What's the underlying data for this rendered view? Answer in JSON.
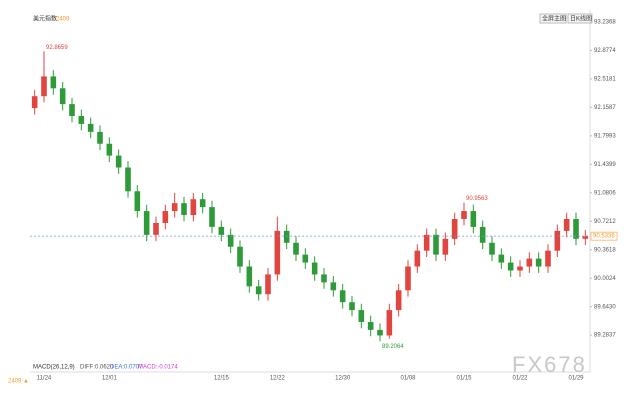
{
  "header": {
    "title": "美元指数",
    "code": "2409",
    "menu_left": "全屏主图▼",
    "menu_right": "日K线图"
  },
  "indicator": {
    "name": "MACD(26,12,9)",
    "diff": "DIFF:0.0620",
    "dea": "DEA:0.0707",
    "macd": "MACD:-0.0174"
  },
  "footer": {
    "code": "2409 ▲",
    "watermark": "FX678"
  },
  "chart_data": {
    "type": "candlestick",
    "up_color": "#e0453f",
    "down_color": "#2f9a3a",
    "categories": [
      null,
      "11/24",
      null,
      null,
      null,
      null,
      null,
      null,
      "12/01",
      null,
      null,
      null,
      null,
      null,
      null,
      null,
      null,
      null,
      null,
      null,
      "12/15",
      null,
      null,
      null,
      null,
      null,
      "12/22",
      null,
      null,
      null,
      null,
      null,
      null,
      "12/30",
      null,
      null,
      null,
      null,
      null,
      null,
      "01/08",
      null,
      null,
      null,
      null,
      null,
      "01/15",
      null,
      null,
      null,
      null,
      null,
      "01/22",
      null,
      null,
      null,
      null,
      null,
      "01/29",
      null
    ],
    "open": [
      92.15,
      92.3,
      92.55,
      92.4,
      92.2,
      92.05,
      91.95,
      91.85,
      91.7,
      91.55,
      91.4,
      91.1,
      90.85,
      90.55,
      90.7,
      90.85,
      90.95,
      90.8,
      91.0,
      90.9,
      90.65,
      90.55,
      90.4,
      90.15,
      89.9,
      89.8,
      90.05,
      90.6,
      90.45,
      90.3,
      90.2,
      90.05,
      89.95,
      89.85,
      89.7,
      89.6,
      89.45,
      89.35,
      89.28,
      89.6,
      89.85,
      90.15,
      90.35,
      90.55,
      90.3,
      90.5,
      90.75,
      90.85,
      90.65,
      90.45,
      90.3,
      90.2,
      90.1,
      90.15,
      90.25,
      90.15,
      90.35,
      90.6,
      90.75,
      90.5
    ],
    "high": [
      92.38,
      92.8659,
      92.63,
      92.48,
      92.28,
      92.13,
      92.03,
      91.93,
      91.78,
      91.63,
      91.48,
      91.18,
      90.93,
      90.78,
      90.93,
      91.08,
      91.03,
      91.08,
      91.08,
      90.98,
      90.73,
      90.63,
      90.48,
      90.23,
      89.98,
      90.13,
      90.78,
      90.68,
      90.53,
      90.38,
      90.28,
      90.13,
      90.03,
      89.93,
      89.78,
      89.68,
      89.53,
      89.43,
      89.68,
      89.93,
      90.23,
      90.43,
      90.63,
      90.63,
      90.58,
      90.83,
      90.9563,
      90.93,
      90.73,
      90.53,
      90.38,
      90.28,
      90.23,
      90.33,
      90.33,
      90.43,
      90.68,
      90.83,
      90.83,
      90.61
    ],
    "low": [
      92.07,
      92.22,
      92.32,
      92.12,
      91.97,
      91.87,
      91.77,
      91.62,
      91.47,
      91.32,
      91.02,
      90.77,
      90.47,
      90.47,
      90.62,
      90.77,
      90.72,
      90.72,
      90.82,
      90.57,
      90.47,
      90.32,
      90.07,
      89.82,
      89.72,
      89.72,
      89.97,
      90.37,
      90.22,
      90.12,
      89.97,
      89.87,
      89.77,
      89.62,
      89.52,
      89.37,
      89.27,
      89.2064,
      89.24,
      89.52,
      89.77,
      90.07,
      90.27,
      90.22,
      90.22,
      90.42,
      90.67,
      90.57,
      90.37,
      90.22,
      90.12,
      90.02,
      90.02,
      90.07,
      90.07,
      90.07,
      90.27,
      90.52,
      90.42,
      90.42
    ],
    "close": [
      92.3,
      92.55,
      92.4,
      92.2,
      92.05,
      91.95,
      91.85,
      91.7,
      91.55,
      91.4,
      91.1,
      90.85,
      90.55,
      90.7,
      90.85,
      90.95,
      90.8,
      91.0,
      90.9,
      90.65,
      90.55,
      90.4,
      90.15,
      89.9,
      89.8,
      90.05,
      90.6,
      90.45,
      90.3,
      90.2,
      90.05,
      89.95,
      89.85,
      89.7,
      89.6,
      89.45,
      89.35,
      89.28,
      89.6,
      89.85,
      90.15,
      90.35,
      90.55,
      90.3,
      90.5,
      90.75,
      90.85,
      90.65,
      90.45,
      90.3,
      90.2,
      90.1,
      90.15,
      90.25,
      90.15,
      90.35,
      90.6,
      90.75,
      90.5,
      90.53
    ],
    "high_value_labels": [
      null,
      "92.8659",
      null,
      null,
      null,
      null,
      null,
      null,
      null,
      null,
      null,
      null,
      null,
      null,
      null,
      null,
      null,
      null,
      null,
      null,
      null,
      null,
      null,
      null,
      null,
      null,
      null,
      null,
      null,
      null,
      null,
      null,
      null,
      null,
      null,
      null,
      null,
      null,
      null,
      null,
      null,
      null,
      null,
      null,
      null,
      null,
      "90.9563",
      null,
      null,
      null,
      null,
      null,
      null,
      null,
      null,
      null,
      null,
      null,
      null,
      null
    ],
    "low_value_labels": [
      null,
      null,
      null,
      null,
      null,
      null,
      null,
      null,
      null,
      null,
      null,
      null,
      null,
      null,
      null,
      null,
      null,
      null,
      null,
      null,
      null,
      null,
      null,
      null,
      null,
      null,
      null,
      null,
      null,
      null,
      null,
      null,
      null,
      null,
      null,
      null,
      null,
      "89.2064",
      null,
      null,
      null,
      null,
      null,
      null,
      null,
      null,
      null,
      null,
      null,
      null,
      null,
      null,
      null,
      null,
      null,
      null,
      null,
      null,
      null,
      null
    ],
    "last_price": 90.5336,
    "ylim": [
      88.97,
      93.2368
    ],
    "yticks": [
      89.2837,
      {
        "value": 89.643,
        "label": "89.6430"
      },
      90.0024,
      90.3618,
      90.7212,
      91.0806,
      91.4399,
      91.7993,
      92.1587,
      92.5181,
      92.8774,
      93.2368
    ]
  }
}
